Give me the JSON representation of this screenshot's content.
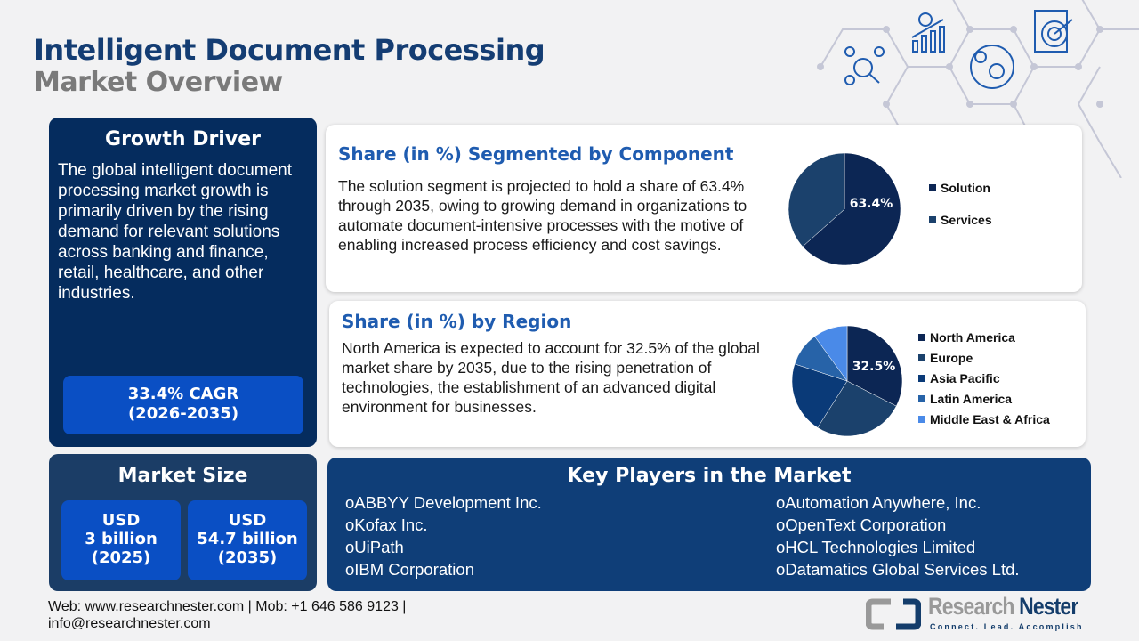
{
  "header": {
    "title": "Intelligent Document Processing",
    "subtitle": "Market Overview"
  },
  "growth_driver": {
    "title": "Growth Driver",
    "text": "The global intelligent document processing market growth is primarily driven by the rising demand for relevant solutions across banking and finance, retail, healthcare, and other industries.",
    "cagr_line1": "33.4% CAGR",
    "cagr_line2": "(2026-2035)"
  },
  "market_size": {
    "title": "Market Size",
    "items": [
      {
        "l1": "USD",
        "l2": "3 billion",
        "l3": "(2025)"
      },
      {
        "l1": "USD",
        "l2": "54.7 billion",
        "l3": "(2035)"
      }
    ]
  },
  "component": {
    "title": "Share (in %) Segmented by Component",
    "text": "The solution segment is projected to hold a share of 63.4% through 2035, owing to growing demand in organizations to automate document-intensive processes with the motive of enabling increased process efficiency and cost savings."
  },
  "region": {
    "title": "Share (in %) by Region",
    "text": "North America is expected to account for 32.5% of the global market share by 2035, due to the rising penetration of technologies, the establishment of an advanced digital environment for businesses."
  },
  "chart_data": [
    {
      "type": "pie",
      "categories": [
        "Solution",
        "Services"
      ],
      "values": [
        63.4,
        36.6
      ],
      "colors": [
        "#0c2654",
        "#1b416c"
      ],
      "data_labels": [
        "63.4%"
      ],
      "legend": "right"
    },
    {
      "type": "pie",
      "categories": [
        "North America",
        "Europe",
        "Asia Pacific",
        "Latin America",
        "Middle East & Africa"
      ],
      "values": [
        32.5,
        26.5,
        21,
        10,
        10
      ],
      "colors": [
        "#0c2654",
        "#1b416c",
        "#0a3a78",
        "#2763a8",
        "#4a8ae8"
      ],
      "data_labels": [
        "32.5%"
      ],
      "legend": "right"
    }
  ],
  "players": {
    "title": "Key Players in the Market",
    "left": [
      "ABBYY Development Inc.",
      "Kofax Inc.",
      "UiPath",
      "IBM Corporation"
    ],
    "right": [
      "Automation Anywhere, Inc.",
      "OpenText Corporation",
      "HCL Technologies Limited",
      "Datamatics Global Services Ltd."
    ],
    "bullet": "o"
  },
  "footer": {
    "line1": "Web: www.researchnester.com | Mob: +1 646 586 9123 |",
    "line2": "info@researchnester.com"
  },
  "logo": {
    "name1": "Research",
    "name2": "Nester",
    "tagline": "Connect. Lead. Accomplish"
  },
  "icons": [
    "network-analytics-icon",
    "growth-chart-icon",
    "global-market-icon",
    "target-clipboard-icon"
  ]
}
